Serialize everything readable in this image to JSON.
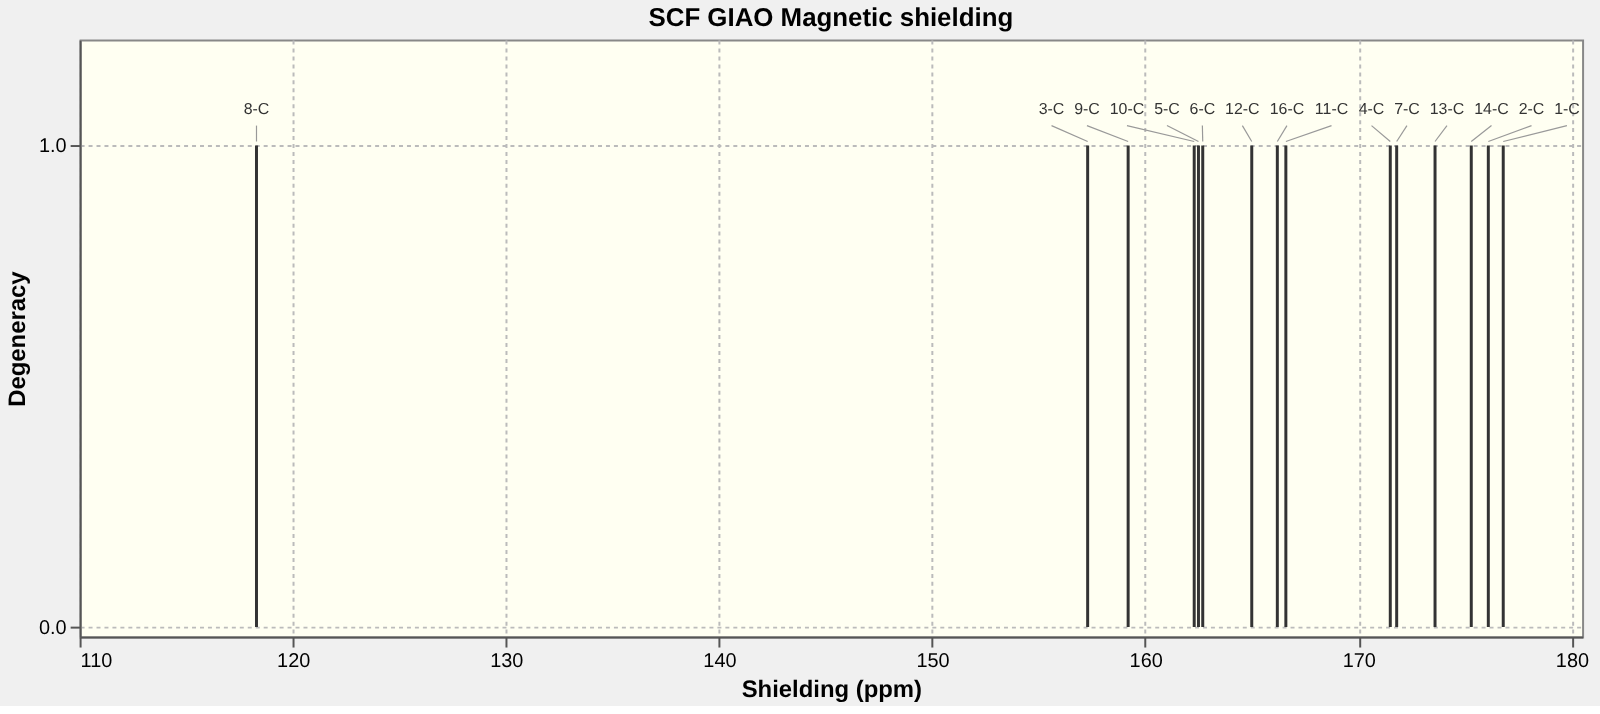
{
  "chart_data": {
    "type": "bar",
    "title": "SCF GIAO Magnetic shielding",
    "xlabel": "Shielding (ppm)",
    "ylabel": "Degeneracy",
    "x": [
      118.3,
      157.3,
      159.2,
      162.3,
      162.5,
      162.7,
      165.0,
      166.2,
      166.6,
      171.5,
      171.8,
      173.6,
      175.3,
      176.1,
      176.8
    ],
    "values": [
      1,
      1,
      1,
      1,
      1,
      1,
      1,
      1,
      1,
      1,
      1,
      1,
      1,
      1,
      1
    ],
    "annotations": [
      {
        "text": "8-C",
        "x": 118.3,
        "y": 1
      },
      {
        "text": "3-C",
        "x": 157.3,
        "y": 1
      },
      {
        "text": "9-C",
        "x": 159.2,
        "y": 1
      },
      {
        "text": "10-C",
        "x": 162.3,
        "y": 1
      },
      {
        "text": "5-C",
        "x": 162.5,
        "y": 1
      },
      {
        "text": "6-C",
        "x": 162.7,
        "y": 1
      },
      {
        "text": "12-C",
        "x": 165.0,
        "y": 1
      },
      {
        "text": "16-C",
        "x": 166.2,
        "y": 1
      },
      {
        "text": "11-C",
        "x": 166.6,
        "y": 1
      },
      {
        "text": "4-C",
        "x": 171.5,
        "y": 1
      },
      {
        "text": "7-C",
        "x": 171.8,
        "y": 1
      },
      {
        "text": "13-C",
        "x": 173.6,
        "y": 1
      },
      {
        "text": "14-C",
        "x": 175.3,
        "y": 1
      },
      {
        "text": "2-C",
        "x": 176.1,
        "y": 1
      },
      {
        "text": "1-C",
        "x": 176.8,
        "y": 1
      }
    ],
    "color": "#333333",
    "xlim": [
      110,
      180.5
    ],
    "xticks": [
      110,
      120,
      130,
      140,
      150,
      160,
      170,
      180
    ],
    "ylim": [
      -0.02,
      1.22
    ],
    "yticks": [
      {
        "value": 0,
        "label": "0.0"
      },
      {
        "value": 1,
        "label": "1.0"
      }
    ],
    "grid": true
  }
}
